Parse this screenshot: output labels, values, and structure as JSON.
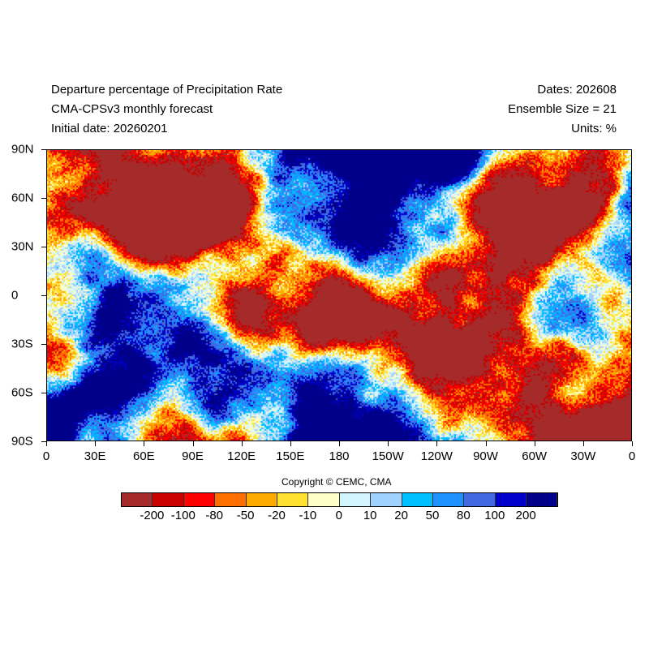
{
  "header": {
    "title_line1": "Departure percentage of Precipitation Rate",
    "title_line2": "CMA-CPSv3 monthly forecast",
    "title_line3": "Initial date: 20260201",
    "right_line1": "Dates: 202608",
    "right_line2": "Ensemble Size = 21",
    "right_line3": "Units: %"
  },
  "axes": {
    "x_ticks": [
      "0",
      "30E",
      "60E",
      "90E",
      "120E",
      "150E",
      "180",
      "150W",
      "120W",
      "90W",
      "60W",
      "30W",
      "0"
    ],
    "y_ticks": [
      "90N",
      "60N",
      "30N",
      "0",
      "30S",
      "60S",
      "90S"
    ]
  },
  "copyright": "Copyright © CEMC, CMA",
  "colorbar": {
    "labels": [
      "-200",
      "-100",
      "-80",
      "-50",
      "-20",
      "-10",
      "0",
      "10",
      "20",
      "50",
      "80",
      "100",
      "200"
    ],
    "colors": [
      "#A52A2A",
      "#C80000",
      "#FF0000",
      "#FF6E00",
      "#FFAA00",
      "#FFE132",
      "#FFFFC8",
      "#D2F5FF",
      "#A0D2FF",
      "#00BEFF",
      "#1E90FF",
      "#4169E1",
      "#0000CD",
      "#00008B"
    ]
  }
}
